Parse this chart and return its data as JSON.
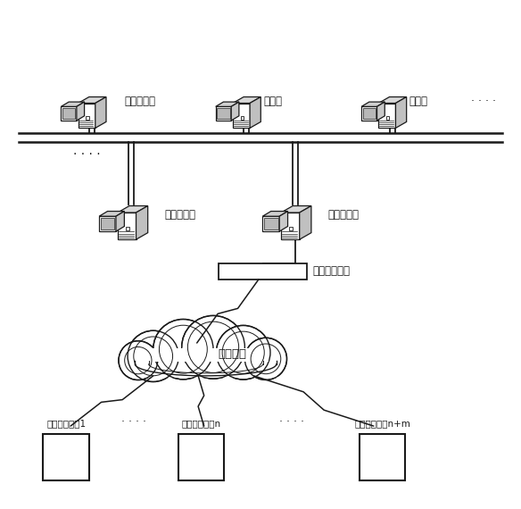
{
  "bg_color": "#ffffff",
  "line_color": "#1a1a1a",
  "text_color": "#1a1a1a",
  "labels": {
    "app_server": "应用服务器",
    "client1": "客户端",
    "client2": "客户端",
    "data_server": "数据服务器",
    "comm_server": "通信服务器",
    "wireless_iface": "无线通信接口",
    "wireless_net": "无线网络",
    "front_dev1": "前端测试设备1",
    "front_devn": "前端测试设备n",
    "front_devnm": "前端测试设备n+m",
    "dots_top": "· · · ·",
    "dots_mid1": "· · · ·",
    "dots_mid2": "· · · ·",
    "more_right": "· · · ·"
  },
  "figsize": [
    5.84,
    5.7
  ],
  "dpi": 100
}
